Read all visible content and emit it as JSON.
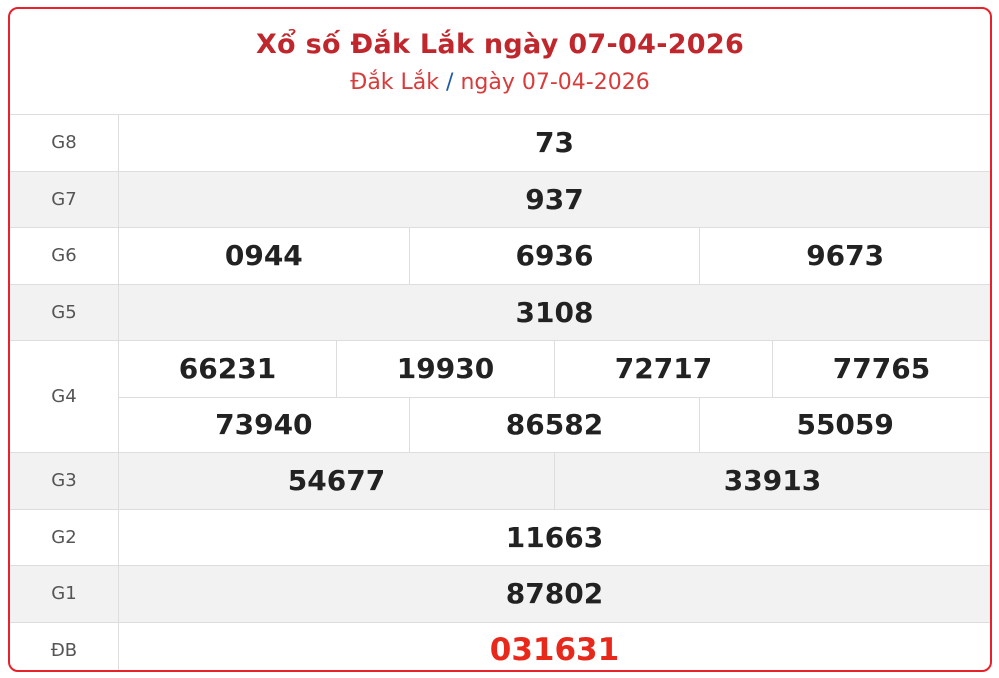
{
  "header": {
    "title": "Xổ số Đắk Lắk ngày 07-04-2026",
    "province": "Đắk Lắk",
    "separator": "/",
    "date": "ngày 07-04-2026"
  },
  "prizes": [
    {
      "label": "G8",
      "lines": [
        [
          "73"
        ]
      ]
    },
    {
      "label": "G7",
      "lines": [
        [
          "937"
        ]
      ]
    },
    {
      "label": "G6",
      "lines": [
        [
          "0944",
          "6936",
          "9673"
        ]
      ]
    },
    {
      "label": "G5",
      "lines": [
        [
          "3108"
        ]
      ]
    },
    {
      "label": "G4",
      "lines": [
        [
          "66231",
          "19930",
          "72717",
          "77765"
        ],
        [
          "73940",
          "86582",
          "55059"
        ]
      ]
    },
    {
      "label": "G3",
      "lines": [
        [
          "54677",
          "33913"
        ]
      ]
    },
    {
      "label": "G2",
      "lines": [
        [
          "11663"
        ]
      ]
    },
    {
      "label": "G1",
      "lines": [
        [
          "87802"
        ]
      ]
    },
    {
      "label": "ĐB",
      "lines": [
        [
          "031631"
        ]
      ]
    }
  ],
  "colors": {
    "border": "#e8212b",
    "title": "#c0272d",
    "special": "#e8281b"
  }
}
